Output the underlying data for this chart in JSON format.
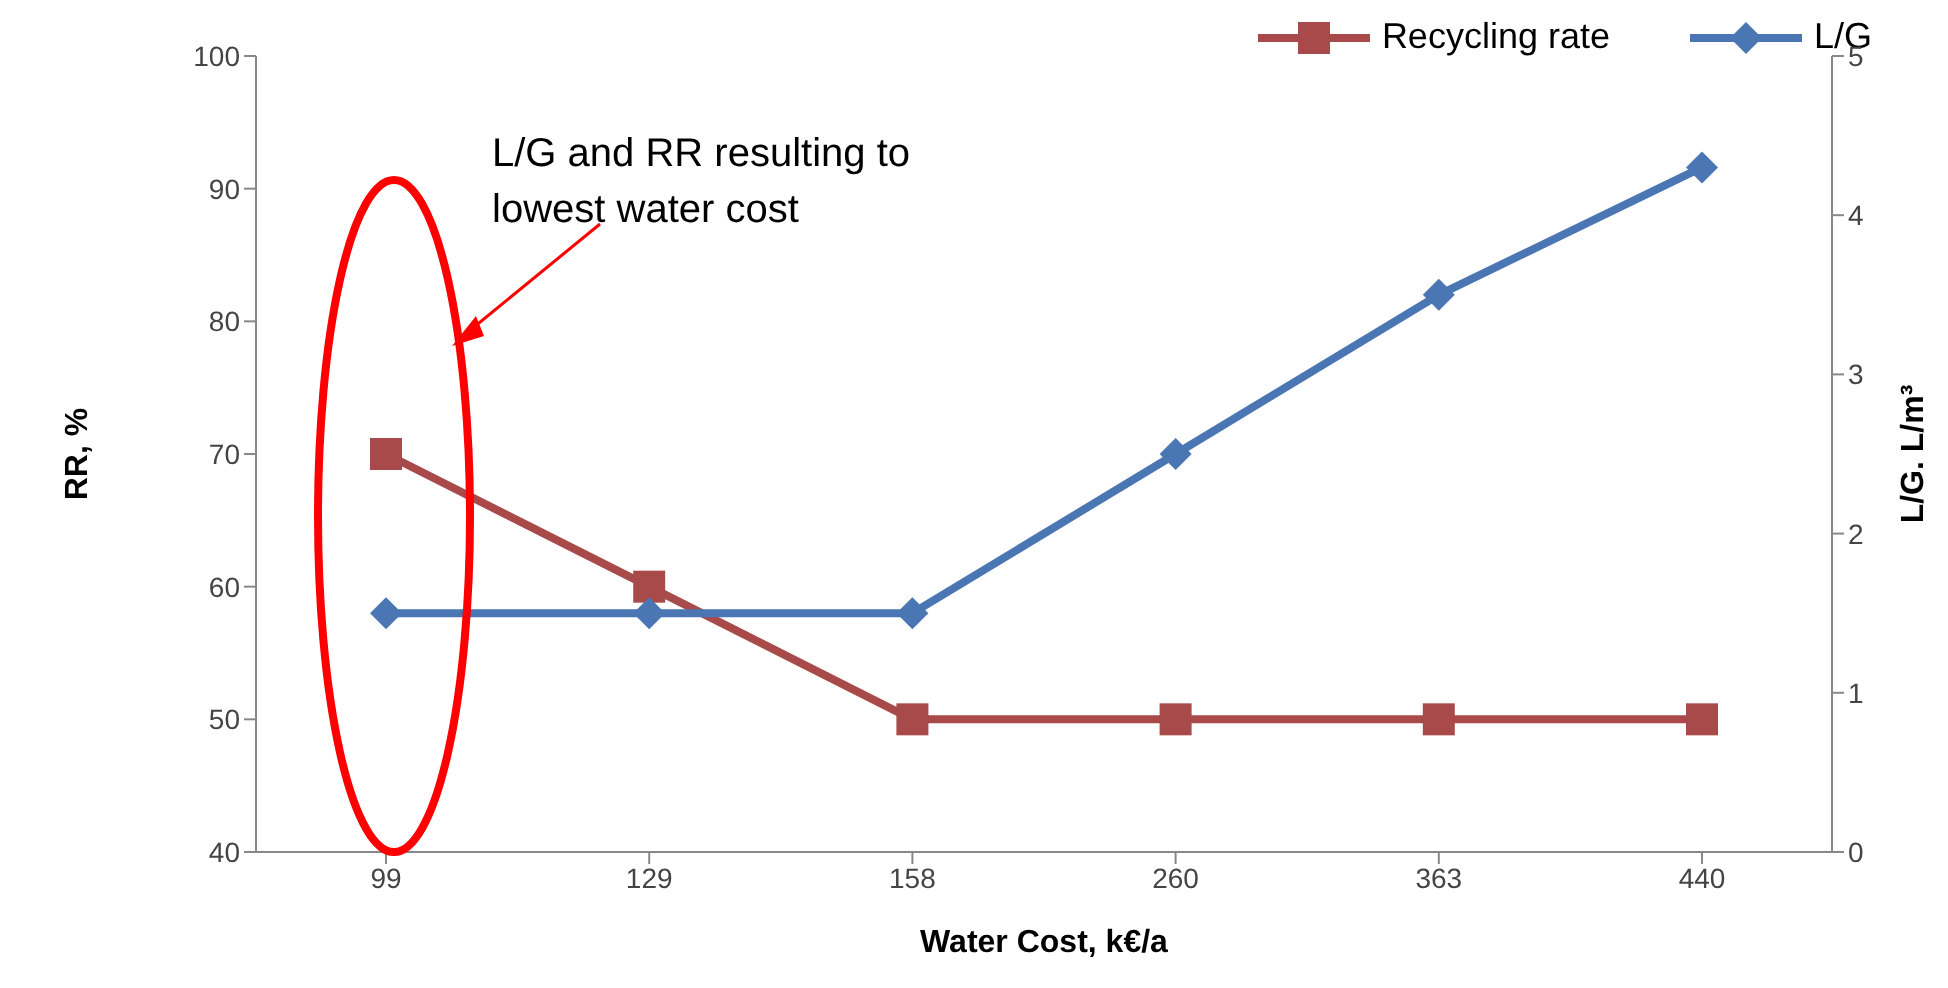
{
  "chart_data": {
    "type": "line",
    "xlabel": "Water Cost, k€/a",
    "ylabel": "RR, %",
    "y2label": "L/G. L/m³",
    "categories": [
      "99",
      "129",
      "158",
      "260",
      "363",
      "440"
    ],
    "series": [
      {
        "name": "Recycling rate",
        "color": "#a84a4a",
        "values": [
          70,
          60,
          50,
          50,
          50,
          50
        ],
        "marker": "square"
      },
      {
        "name": "L/G",
        "color": "#4a76b4",
        "values": [
          1.5,
          1.5,
          1.5,
          2.5,
          3.5,
          4.3
        ],
        "axis": "y2",
        "marker": "diamond"
      }
    ],
    "ylim": [
      40,
      100
    ],
    "yticks": [
      40,
      50,
      60,
      70,
      80,
      90,
      100
    ],
    "y2lim": [
      0,
      5
    ],
    "y2ticks": [
      0,
      1,
      2,
      3,
      4,
      5
    ],
    "grid": false,
    "legend": "top right",
    "line_style": "solid",
    "annotations": [
      "L/G and RR resulting to lowest water cost"
    ]
  }
}
